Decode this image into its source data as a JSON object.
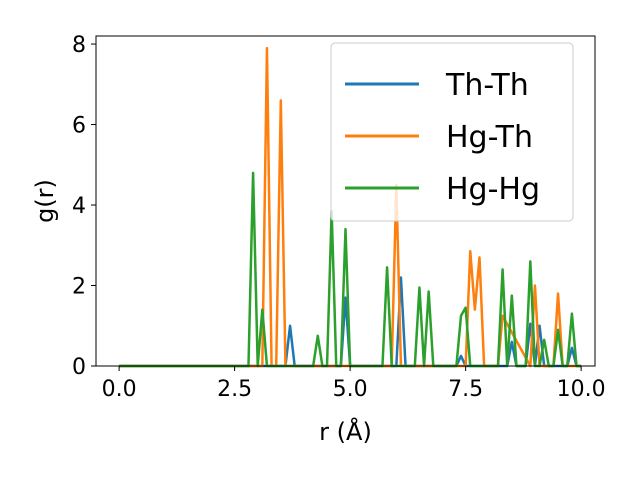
{
  "chart_data": {
    "type": "line",
    "xlabel": "r (Å)",
    "ylabel": "g(r)",
    "xlim": [
      -0.5,
      10.3
    ],
    "ylim": [
      0,
      8.2
    ],
    "xticks": [
      0.0,
      2.5,
      5.0,
      7.5,
      10.0
    ],
    "xtick_labels": [
      "0.0",
      "2.5",
      "5.0",
      "7.5",
      "10.0"
    ],
    "yticks": [
      0,
      2,
      4,
      6,
      8
    ],
    "ytick_labels": [
      "0",
      "2",
      "4",
      "6",
      "8"
    ],
    "grid": false,
    "legend_position": "top-right",
    "series": [
      {
        "name": "Th-Th",
        "color": "#1f77b4",
        "x": [
          0,
          3.5,
          3.6,
          3.7,
          3.8,
          3.9,
          4.8,
          4.9,
          5.0,
          6.0,
          6.1,
          6.2,
          7.3,
          7.4,
          7.5,
          8.4,
          8.5,
          8.6,
          8.8,
          8.9,
          9.0,
          9.1,
          9.2,
          9.3,
          9.7,
          9.8,
          9.9,
          10.0
        ],
        "y": [
          0,
          0,
          0,
          1.0,
          0,
          0,
          0,
          1.7,
          0,
          0,
          2.2,
          0,
          0,
          0.25,
          0,
          0,
          0.6,
          0,
          0,
          1.05,
          0,
          1.0,
          0,
          0,
          0,
          0.45,
          0,
          0
        ]
      },
      {
        "name": "Hg-Th",
        "color": "#ff7f0e",
        "x": [
          0,
          3.1,
          3.2,
          3.3,
          3.4,
          3.5,
          3.6,
          5.8,
          5.9,
          6.0,
          6.1,
          6.2,
          7.5,
          7.6,
          7.7,
          7.8,
          7.9,
          8.2,
          8.3,
          8.9,
          9.0,
          9.1,
          9.4,
          9.5,
          9.6,
          10.0
        ],
        "y": [
          0,
          0,
          7.9,
          0,
          0,
          6.6,
          0,
          0,
          0,
          4.5,
          0,
          0,
          0,
          2.85,
          1.4,
          2.7,
          0,
          0,
          1.25,
          0,
          2.0,
          0,
          0,
          1.8,
          0,
          0
        ]
      },
      {
        "name": "Hg-Hg",
        "color": "#2ca02c",
        "x": [
          0,
          2.8,
          2.9,
          3.0,
          3.1,
          3.2,
          4.2,
          4.3,
          4.4,
          4.5,
          4.6,
          4.7,
          4.8,
          4.9,
          5.0,
          5.6,
          5.7,
          5.8,
          5.9,
          6.0,
          6.3,
          6.4,
          6.5,
          6.6,
          6.7,
          6.8,
          7.3,
          7.4,
          7.5,
          7.6,
          8.2,
          8.3,
          8.4,
          8.5,
          8.6,
          8.8,
          8.9,
          9.0,
          9.1,
          9.2,
          9.3,
          9.4,
          9.5,
          9.6,
          9.7,
          9.8,
          9.9,
          10.0
        ],
        "y": [
          0,
          0,
          4.8,
          0,
          1.4,
          0,
          0,
          0.75,
          0,
          0,
          3.85,
          0,
          0,
          3.4,
          0,
          0,
          0,
          2.45,
          0,
          0,
          0,
          0,
          1.95,
          0,
          1.85,
          0,
          0,
          1.25,
          1.45,
          0,
          0,
          2.4,
          0,
          1.75,
          0,
          0,
          2.6,
          0,
          0,
          0.65,
          0,
          0,
          0.9,
          0,
          0,
          1.3,
          0,
          0
        ]
      }
    ]
  }
}
